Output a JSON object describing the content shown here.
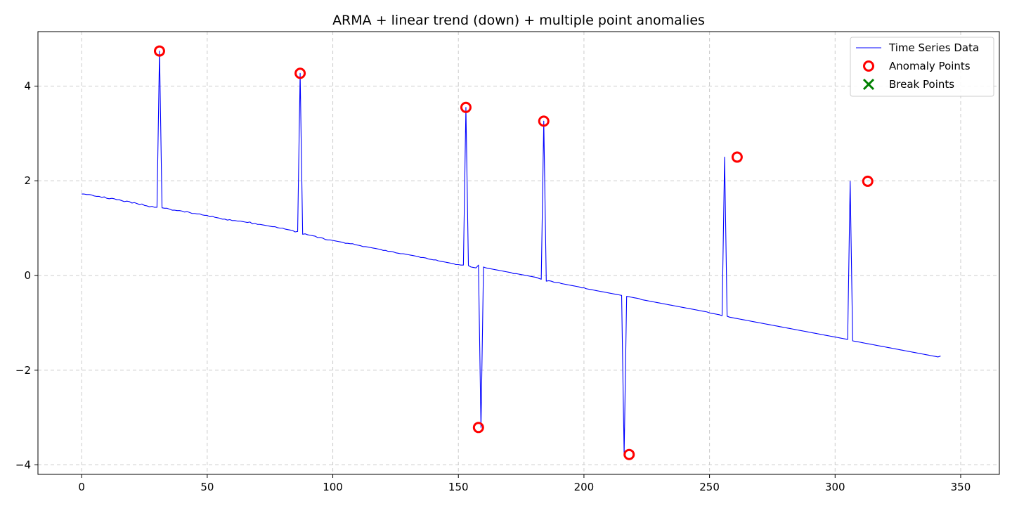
{
  "chart_data": {
    "type": "line",
    "title": "ARMA + linear trend (down) + multiple point anomalies",
    "xlabel": "",
    "ylabel": "",
    "xlim": [
      -17.4,
      365.4
    ],
    "ylim": [
      -4.2,
      5.15
    ],
    "x_ticks": [
      0,
      50,
      100,
      150,
      200,
      250,
      300,
      350
    ],
    "y_ticks": [
      -4,
      -2,
      0,
      2,
      4
    ],
    "x_tick_labels": [
      "0",
      "50",
      "100",
      "150",
      "200",
      "250",
      "300",
      "350"
    ],
    "y_tick_labels": [
      "−4",
      "−2",
      "0",
      "2",
      "4"
    ],
    "grid": true,
    "legend": {
      "location": "upper right",
      "entries": [
        "Time Series Data",
        "Anomaly Points",
        "Break Points"
      ]
    },
    "series": [
      {
        "name": "Time Series Data",
        "kind": "line",
        "color": "#0000ff",
        "x_start": 0,
        "x_step": 1,
        "y": [
          1.72,
          1.72,
          1.71,
          1.71,
          1.7,
          1.68,
          1.67,
          1.67,
          1.65,
          1.66,
          1.63,
          1.62,
          1.63,
          1.62,
          1.6,
          1.6,
          1.58,
          1.56,
          1.57,
          1.56,
          1.53,
          1.54,
          1.52,
          1.5,
          1.51,
          1.48,
          1.47,
          1.45,
          1.46,
          1.44,
          1.44,
          4.74,
          1.43,
          1.42,
          1.42,
          1.4,
          1.38,
          1.38,
          1.37,
          1.37,
          1.36,
          1.34,
          1.35,
          1.33,
          1.31,
          1.31,
          1.3,
          1.3,
          1.28,
          1.27,
          1.27,
          1.24,
          1.25,
          1.23,
          1.22,
          1.21,
          1.19,
          1.19,
          1.17,
          1.18,
          1.16,
          1.16,
          1.15,
          1.15,
          1.14,
          1.13,
          1.12,
          1.13,
          1.09,
          1.1,
          1.08,
          1.08,
          1.07,
          1.06,
          1.05,
          1.04,
          1.03,
          1.03,
          1.01,
          1.0,
          1.0,
          0.98,
          0.97,
          0.96,
          0.95,
          0.92,
          0.93,
          4.27,
          0.87,
          0.88,
          0.86,
          0.85,
          0.84,
          0.83,
          0.8,
          0.8,
          0.79,
          0.76,
          0.75,
          0.75,
          0.74,
          0.73,
          0.72,
          0.71,
          0.7,
          0.68,
          0.68,
          0.67,
          0.67,
          0.65,
          0.64,
          0.63,
          0.61,
          0.61,
          0.6,
          0.59,
          0.58,
          0.57,
          0.56,
          0.55,
          0.53,
          0.53,
          0.51,
          0.51,
          0.5,
          0.48,
          0.47,
          0.46,
          0.46,
          0.45,
          0.44,
          0.43,
          0.42,
          0.41,
          0.4,
          0.38,
          0.38,
          0.37,
          0.35,
          0.34,
          0.33,
          0.33,
          0.31,
          0.3,
          0.29,
          0.28,
          0.27,
          0.26,
          0.25,
          0.23,
          0.23,
          0.22,
          0.22,
          3.55,
          0.21,
          0.18,
          0.17,
          0.16,
          0.22,
          -3.21,
          0.18,
          0.16,
          0.15,
          0.14,
          0.13,
          0.12,
          0.11,
          0.1,
          0.09,
          0.08,
          0.07,
          0.06,
          0.04,
          0.04,
          0.03,
          0.02,
          0.01,
          0.0,
          -0.01,
          -0.02,
          -0.03,
          -0.04,
          -0.06,
          -0.08,
          3.26,
          -0.12,
          -0.11,
          -0.12,
          -0.14,
          -0.15,
          -0.15,
          -0.17,
          -0.18,
          -0.19,
          -0.2,
          -0.21,
          -0.22,
          -0.23,
          -0.24,
          -0.26,
          -0.26,
          -0.28,
          -0.29,
          -0.3,
          -0.31,
          -0.32,
          -0.33,
          -0.34,
          -0.35,
          -0.36,
          -0.37,
          -0.38,
          -0.39,
          -0.4,
          -0.41,
          -0.42,
          -3.78,
          -0.44,
          -0.45,
          -0.46,
          -0.47,
          -0.48,
          -0.49,
          -0.51,
          -0.52,
          -0.53,
          -0.54,
          -0.55,
          -0.56,
          -0.57,
          -0.58,
          -0.59,
          -0.6,
          -0.61,
          -0.62,
          -0.63,
          -0.64,
          -0.65,
          -0.66,
          -0.67,
          -0.68,
          -0.69,
          -0.7,
          -0.71,
          -0.72,
          -0.73,
          -0.74,
          -0.75,
          -0.76,
          -0.77,
          -0.79,
          -0.8,
          -0.81,
          -0.82,
          -0.83,
          -0.85,
          2.5,
          -0.86,
          -0.88,
          -0.89,
          -0.9,
          -0.91,
          -0.92,
          -0.93,
          -0.94,
          -0.95,
          -0.96,
          -0.97,
          -0.98,
          -0.99,
          -1.0,
          -1.01,
          -1.02,
          -1.03,
          -1.04,
          -1.05,
          -1.06,
          -1.07,
          -1.08,
          -1.09,
          -1.1,
          -1.11,
          -1.12,
          -1.13,
          -1.14,
          -1.15,
          -1.16,
          -1.17,
          -1.18,
          -1.19,
          -1.2,
          -1.21,
          -1.22,
          -1.23,
          -1.24,
          -1.25,
          -1.26,
          -1.27,
          -1.28,
          -1.29,
          -1.3,
          -1.31,
          -1.32,
          -1.33,
          -1.34,
          -1.35,
          1.99,
          -1.38,
          -1.39,
          -1.4,
          -1.41,
          -1.42,
          -1.43,
          -1.44,
          -1.45,
          -1.46,
          -1.47,
          -1.48,
          -1.49,
          -1.5,
          -1.51,
          -1.52,
          -1.53,
          -1.54,
          -1.55,
          -1.56,
          -1.57,
          -1.58,
          -1.59,
          -1.6,
          -1.61,
          -1.62,
          -1.63,
          -1.64,
          -1.65,
          -1.66,
          -1.67,
          -1.68,
          -1.69,
          -1.7,
          -1.71,
          -1.72,
          -1.7
        ]
      },
      {
        "name": "Anomaly Points",
        "kind": "scatter",
        "marker": "open-circle",
        "color": "#ff0000",
        "points": [
          [
            31,
            4.74
          ],
          [
            87,
            4.27
          ],
          [
            153,
            3.55
          ],
          [
            158,
            -3.21
          ],
          [
            184,
            3.26
          ],
          [
            218,
            -3.78
          ],
          [
            261,
            2.5
          ],
          [
            313,
            1.99
          ]
        ]
      },
      {
        "name": "Break Points",
        "kind": "scatter",
        "marker": "x",
        "color": "#008000",
        "points": []
      }
    ]
  }
}
